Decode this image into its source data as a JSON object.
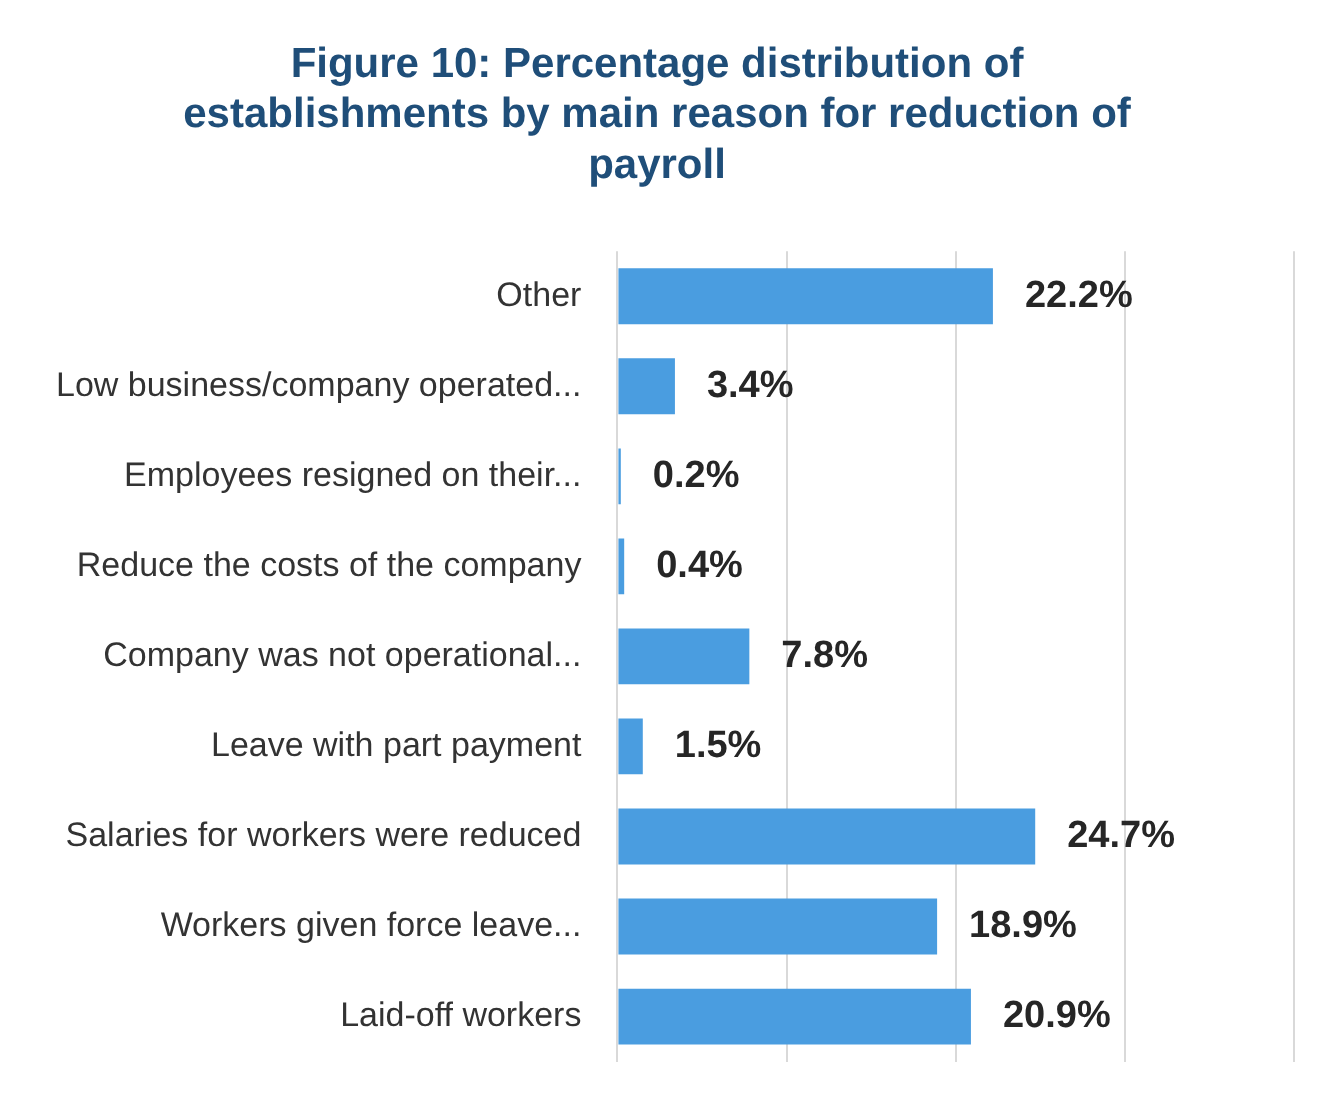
{
  "chart_data": {
    "type": "bar",
    "orientation": "horizontal",
    "title": "Figure 10: Percentage distribution of establishments by main reason for reduction of payroll",
    "categories": [
      "Other",
      "Low business/company operated...",
      "Employees resigned on their...",
      "Reduce the costs of the company",
      "Company was not operational...",
      "Leave with part payment",
      "Salaries for workers were reduced",
      "Workers given force leave...",
      "Laid-off workers"
    ],
    "values": [
      22.2,
      3.4,
      0.2,
      0.4,
      7.8,
      1.5,
      24.7,
      18.9,
      20.9
    ],
    "value_labels": [
      "22.2%",
      "3.4%",
      "0.2%",
      "0.4%",
      "7.8%",
      "1.5%",
      "24.7%",
      "18.9%",
      "20.9%"
    ],
    "color": "#4a9de0",
    "xlim": [
      0,
      40
    ],
    "xticks": [
      {
        "value": 0,
        "label": null
      },
      {
        "value": 10,
        "label": null
      },
      {
        "value": 20,
        "label": null
      },
      {
        "value": 30,
        "label": null
      },
      {
        "value": 40,
        "label": null
      }
    ],
    "grid": "x",
    "tick_labels": "y",
    "legend": false
  }
}
